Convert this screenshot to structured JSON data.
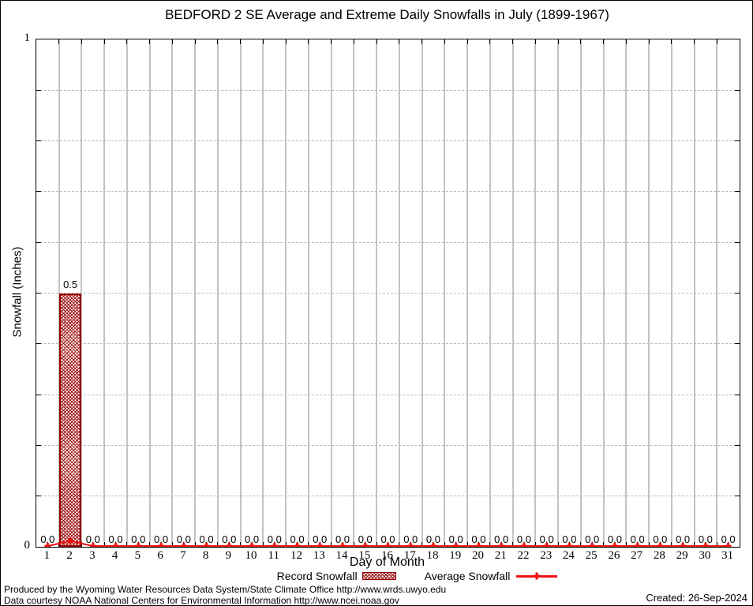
{
  "page": {
    "footer_line1": "Produced by the Wyoming Water Resources Data System/State Climate Office http://www.wrds.uwyo.edu",
    "footer_line2": "Data courtesy NOAA National Centers for Environmental Information http://www.ncei.noaa.gov",
    "created": "Created: 26-Sep-2024"
  },
  "colors": {
    "record_border": "#990000",
    "record_hatch": "#9e1212",
    "average_line": "#ee1111",
    "gridline": "#c3c3c3",
    "dashed_gridline": "#b9b9b9",
    "axis": "#000000"
  },
  "chart_data": {
    "type": "bar",
    "title": "BEDFORD 2 SE Average and Extreme Daily Snowfalls in July (1899-1967)",
    "xlabel": "Day of Month",
    "ylabel": "Snowfall (Inches)",
    "ylim": [
      0,
      1
    ],
    "ytick_step": 0.1,
    "ytick_shown": [
      {
        "value": 1,
        "label": "1"
      },
      {
        "value": 0,
        "label": "0"
      }
    ],
    "grid": true,
    "legend_position": "bottom",
    "categories": [
      1,
      2,
      3,
      4,
      5,
      6,
      7,
      8,
      9,
      10,
      11,
      12,
      13,
      14,
      15,
      16,
      17,
      18,
      19,
      20,
      21,
      22,
      23,
      24,
      25,
      26,
      27,
      28,
      29,
      30,
      31
    ],
    "series": [
      {
        "name": "Record Snowfall",
        "type": "bar",
        "style": "crosshatch",
        "values": [
          0.0,
          0.5,
          0.0,
          0.0,
          0.0,
          0.0,
          0.0,
          0.0,
          0.0,
          0.0,
          0.0,
          0.0,
          0.0,
          0.0,
          0.0,
          0.0,
          0.0,
          0.0,
          0.0,
          0.0,
          0.0,
          0.0,
          0.0,
          0.0,
          0.0,
          0.0,
          0.0,
          0.0,
          0.0,
          0.0,
          0.0
        ],
        "value_labels": [
          "0.0",
          "0.5",
          "0.0",
          "0.0",
          "0.0",
          "0.0",
          "0.0",
          "0.0",
          "0.0",
          "0.0",
          "0.0",
          "0.0",
          "0.0",
          "0.0",
          "0.0",
          "0.0",
          "0.0",
          "0.0",
          "0.0",
          "0.0",
          "0.0",
          "0.0",
          "0.0",
          "0.0",
          "0.0",
          "0.0",
          "0.0",
          "0.0",
          "0.0",
          "0.0",
          "0.0"
        ]
      },
      {
        "name": "Average Snowfall",
        "type": "line",
        "marker": "plus",
        "values": [
          0,
          0.01,
          0,
          0,
          0,
          0,
          0,
          0,
          0,
          0,
          0,
          0,
          0,
          0,
          0,
          0,
          0,
          0,
          0,
          0,
          0,
          0,
          0,
          0,
          0,
          0,
          0,
          0,
          0,
          0,
          0
        ]
      }
    ]
  }
}
